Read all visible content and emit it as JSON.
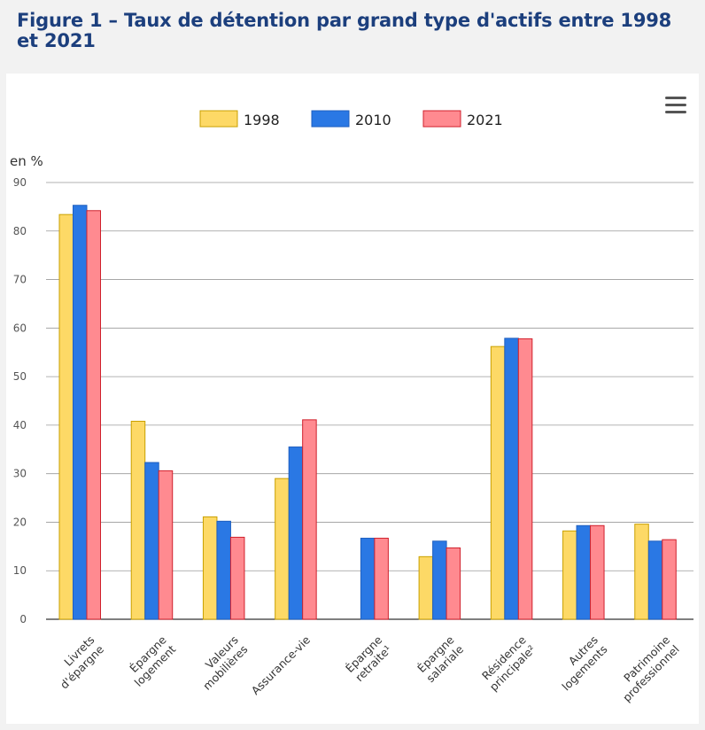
{
  "title": "Figure 1 – Taux de détention par grand type d'actifs entre 1998 et 2021",
  "menu": {
    "icon": "hamburger-menu-icon"
  },
  "chart_data": {
    "type": "bar",
    "title": "Figure 1 – Taux de détention par grand type d'actifs entre 1998 et 2021",
    "ylabel": "en %",
    "xlabel": "",
    "ylim": [
      0,
      90
    ],
    "yticks": [
      0,
      10,
      20,
      30,
      40,
      50,
      60,
      70,
      80,
      90
    ],
    "grid": true,
    "legend_position": "top-center",
    "categories": [
      [
        "Livrets",
        "d'épargne"
      ],
      [
        "Épargne",
        "logement"
      ],
      [
        "Valeurs",
        "mobilières"
      ],
      [
        "Assurance-vie"
      ],
      [
        "Épargne",
        "retraite¹"
      ],
      [
        "Épargne",
        "salariale"
      ],
      [
        "Résidence",
        "principale²"
      ],
      [
        "Autres",
        "logements"
      ],
      [
        "Patrimoine",
        "professionnel"
      ]
    ],
    "series": [
      {
        "name": "1998",
        "color": "#fdd966",
        "stroke": "#c9a000",
        "values": [
          83.4,
          40.8,
          21.1,
          29.0,
          null,
          12.9,
          56.2,
          18.2,
          19.6
        ]
      },
      {
        "name": "2010",
        "color": "#2a78e4",
        "stroke": "#1f5fbf",
        "values": [
          85.3,
          32.3,
          20.2,
          35.5,
          16.7,
          16.1,
          57.9,
          19.3,
          16.1
        ]
      },
      {
        "name": "2021",
        "color": "#ff8a90",
        "stroke": "#d0202c",
        "values": [
          84.2,
          30.6,
          16.9,
          41.1,
          16.7,
          14.7,
          57.8,
          19.3,
          16.4
        ]
      }
    ]
  }
}
